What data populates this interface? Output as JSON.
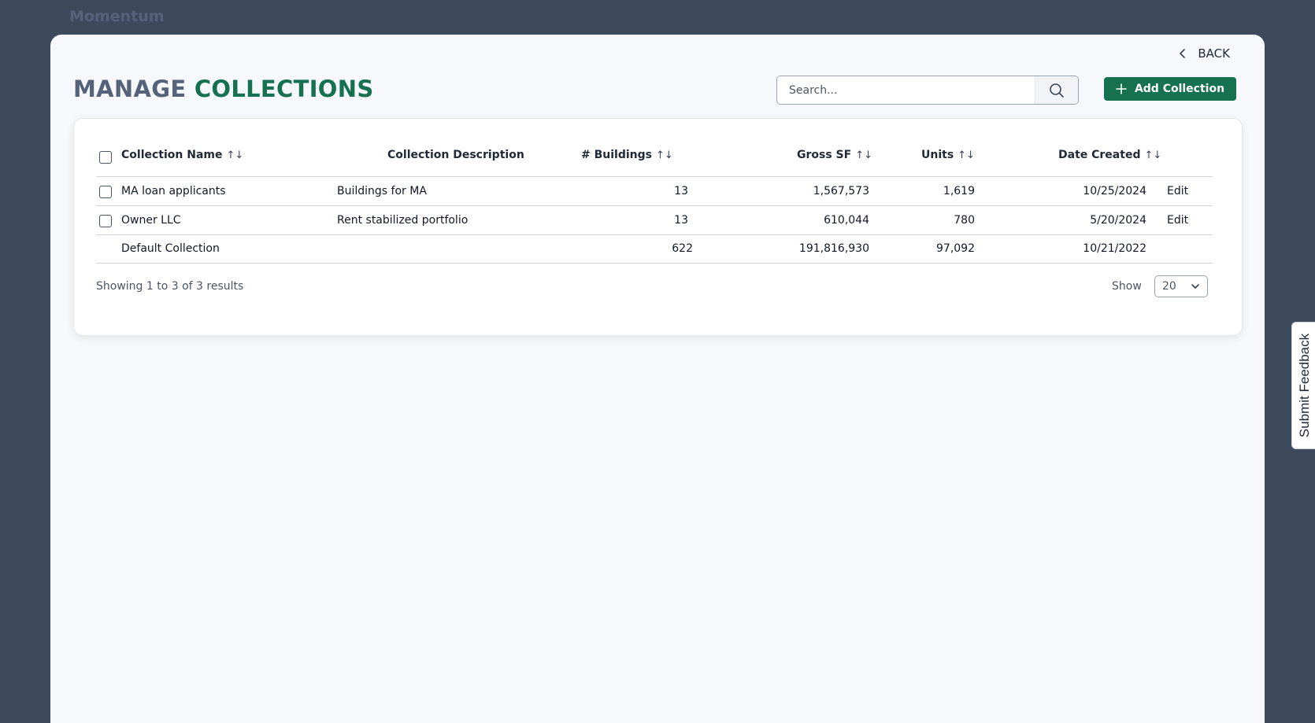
{
  "app": {
    "brand": "Momentum"
  },
  "nav": {
    "back_label": "BACK"
  },
  "header": {
    "title_part1": "MANAGE",
    "title_part2": "COLLECTIONS",
    "search_placeholder": "Search...",
    "add_button_label": "Add Collection"
  },
  "table": {
    "columns": {
      "name": "Collection Name",
      "description": "Collection Description",
      "buildings": "# Buildings",
      "gross_sf": "Gross SF",
      "units": "Units",
      "date_created": "Date Created"
    },
    "sort_glyph": "↑↓",
    "rows": [
      {
        "name": "MA loan applicants",
        "description": "Buildings for MA",
        "buildings": "13",
        "gross_sf": "1,567,573",
        "units": "1,619",
        "date": "10/25/2024",
        "action": "Edit"
      },
      {
        "name": "Owner LLC",
        "description": "Rent stabilized portfolio",
        "buildings": "13",
        "gross_sf": "610,044",
        "units": "780",
        "date": "5/20/2024",
        "action": "Edit"
      },
      {
        "name": "Default Collection",
        "description": "",
        "buildings": "622",
        "gross_sf": "191,816,930",
        "units": "97,092",
        "date": "10/21/2022",
        "action": ""
      }
    ]
  },
  "pagination": {
    "summary": "Showing 1 to 3 of 3 results",
    "show_label": "Show",
    "page_size": "20"
  },
  "feedback": {
    "label": "Submit Feedback"
  },
  "colors": {
    "brand_green": "#15714f",
    "background": "#3d4a5c",
    "title_gray": "#55627a"
  }
}
